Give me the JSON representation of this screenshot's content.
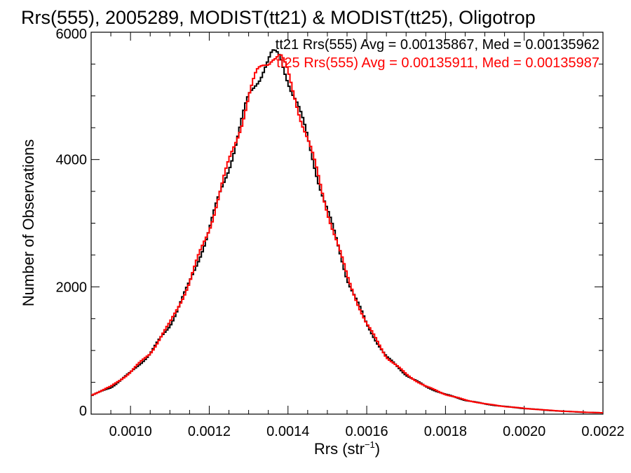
{
  "chart_data": {
    "type": "line",
    "title": "Rrs(555), 2005289, MODIST(tt21) & MODIST(tt25), Oligotrop",
    "xlabel": "Rrs (str",
    "xlabel_sup": "−1",
    "xlabel_close": ")",
    "ylabel": "Number of Observations",
    "xlim": [
      0.0009,
      0.0022
    ],
    "ylim": [
      0,
      6000
    ],
    "x_ticks": [
      0.001,
      0.0012,
      0.0014,
      0.0016,
      0.0018,
      0.002,
      0.0022
    ],
    "x_tick_labels": [
      "0.0010",
      "0.0012",
      "0.0014",
      "0.0016",
      "0.0018",
      "0.0020",
      "0.0022"
    ],
    "y_ticks": [
      0,
      2000,
      4000,
      6000
    ],
    "y_tick_labels": [
      "0",
      "2000",
      "4000",
      "6000"
    ],
    "annotations": [
      "tt21 Rrs(555) Avg = 0.00135867, Med = 0.00135962",
      "tt25 Rrs(555) Avg = 0.00135911, Med = 0.00135987"
    ],
    "x": [
      0.0009,
      0.00095,
      0.001,
      0.00105,
      0.0011,
      0.00115,
      0.0012,
      0.00125,
      0.0013,
      0.00132,
      0.00134,
      0.00136,
      0.00138,
      0.0014,
      0.00142,
      0.00145,
      0.0015,
      0.00155,
      0.0016,
      0.00165,
      0.0017,
      0.00175,
      0.0018,
      0.00185,
      0.0019,
      0.00195,
      0.002,
      0.00205,
      0.0021,
      0.00215,
      0.0022
    ],
    "series": [
      {
        "name": "tt21",
        "color": "#000000",
        "values": [
          290,
          420,
          650,
          950,
          1400,
          2050,
          2900,
          3900,
          4950,
          5250,
          5480,
          5620,
          5580,
          5300,
          4950,
          4300,
          3200,
          2150,
          1400,
          900,
          620,
          430,
          310,
          220,
          160,
          120,
          90,
          65,
          45,
          30,
          20
        ]
      },
      {
        "name": "tt25",
        "color": "#ff0000",
        "values": [
          300,
          430,
          660,
          960,
          1420,
          2070,
          2930,
          3940,
          4980,
          5300,
          5520,
          5660,
          5600,
          5320,
          4960,
          4310,
          3210,
          2160,
          1410,
          905,
          625,
          435,
          312,
          222,
          162,
          121,
          91,
          66,
          46,
          31,
          21
        ]
      }
    ]
  }
}
